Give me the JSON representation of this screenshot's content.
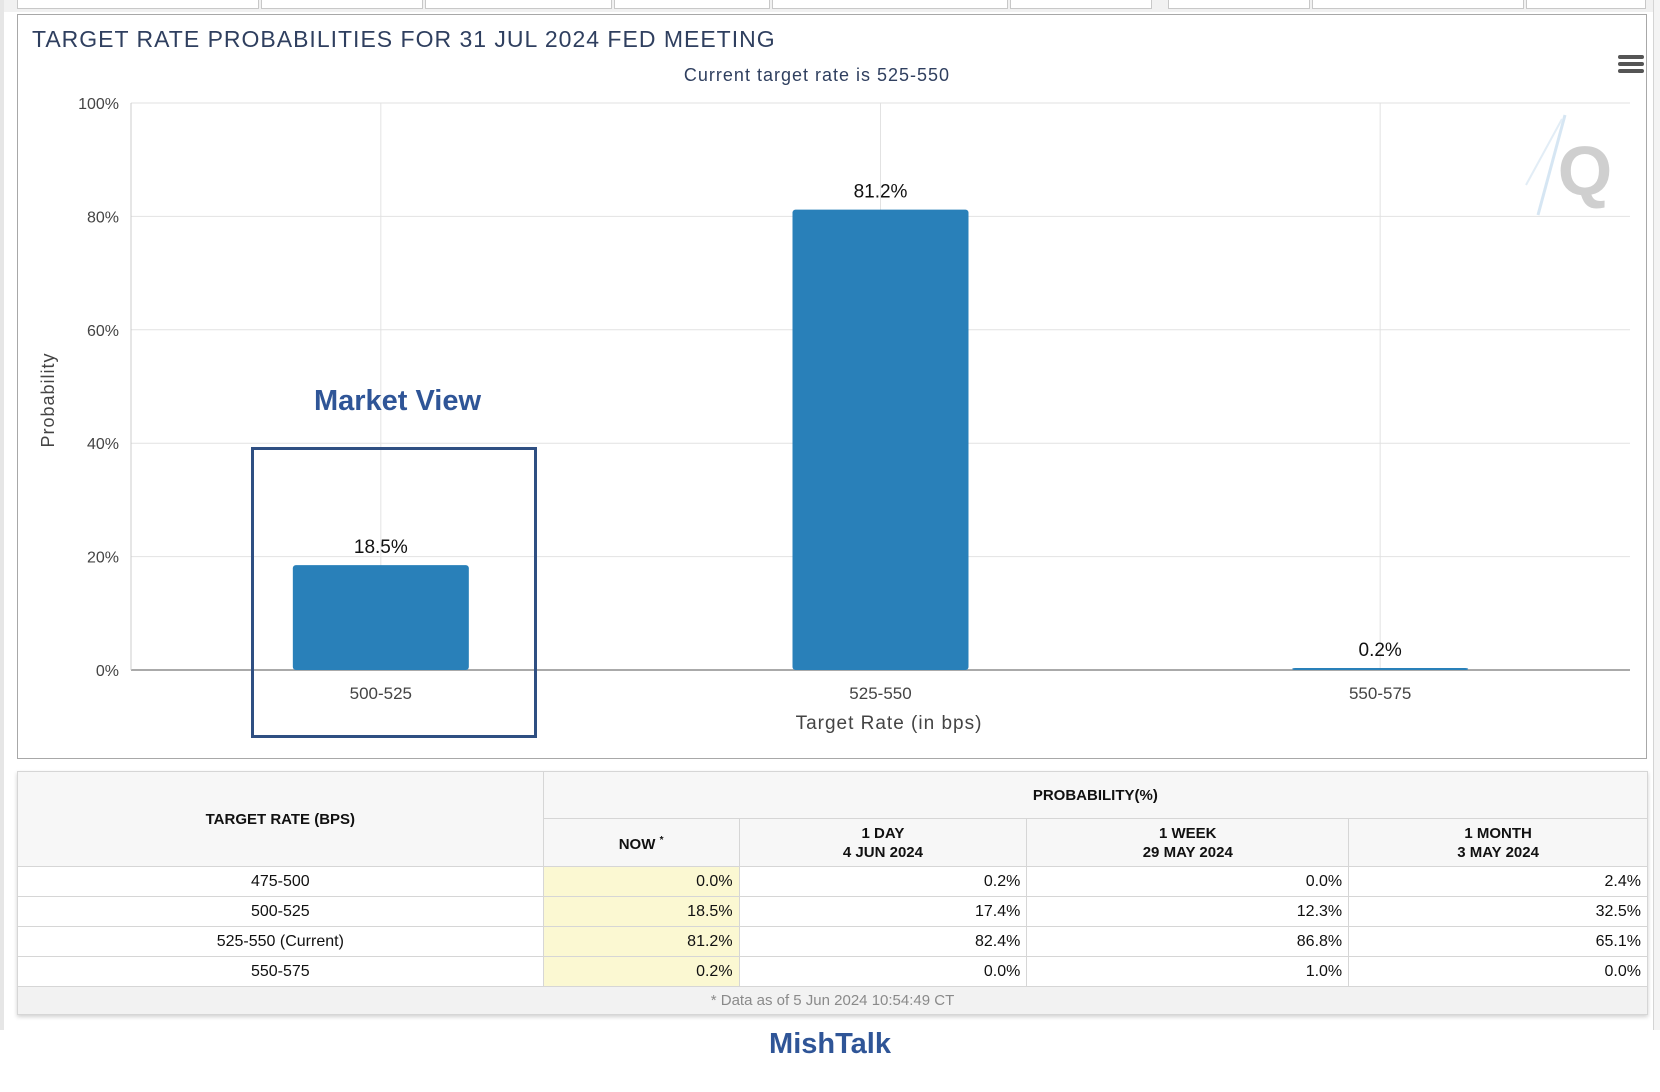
{
  "chart_data": {
    "type": "bar",
    "title": "TARGET RATE PROBABILITIES FOR 31 JUL 2024 FED MEETING",
    "subtitle": "Current target rate is 525-550",
    "categories": [
      "500-525",
      "525-550",
      "550-575"
    ],
    "values": [
      18.5,
      81.2,
      0.2
    ],
    "data_labels": [
      "18.5%",
      "81.2%",
      "0.2%"
    ],
    "xlabel": "Target Rate (in bps)",
    "ylabel": "Probability",
    "ylim": [
      0,
      100
    ],
    "y_ticks": [
      "0%",
      "20%",
      "40%",
      "60%",
      "80%",
      "100%"
    ],
    "grid": true,
    "bar_color": "#2980b9",
    "annotation": "Market View"
  },
  "watermark": "Q",
  "table": {
    "target_rate_header": "TARGET RATE (BPS)",
    "probability_header": "PROBABILITY(%)",
    "columns": [
      {
        "line1": "NOW",
        "line2": "",
        "marker": "*"
      },
      {
        "line1": "1 DAY",
        "line2": "4 JUN 2024",
        "marker": ""
      },
      {
        "line1": "1 WEEK",
        "line2": "29 MAY 2024",
        "marker": ""
      },
      {
        "line1": "1 MONTH",
        "line2": "3 MAY 2024",
        "marker": ""
      }
    ],
    "rows": [
      {
        "rate": "475-500",
        "values": [
          "0.0%",
          "0.2%",
          "0.0%",
          "2.4%"
        ]
      },
      {
        "rate": "500-525",
        "values": [
          "18.5%",
          "17.4%",
          "12.3%",
          "32.5%"
        ]
      },
      {
        "rate": "525-550 (Current)",
        "values": [
          "81.2%",
          "82.4%",
          "86.8%",
          "65.1%"
        ]
      },
      {
        "rate": "550-575",
        "values": [
          "0.2%",
          "0.0%",
          "1.0%",
          "0.0%"
        ]
      }
    ],
    "note": "* Data as of 5 Jun 2024 10:54:49 CT"
  },
  "brand": "MishTalk",
  "colors": {
    "title": "#2f3f5f",
    "annotation": "#2f5597",
    "now_column_bg": "#fbf8d2"
  }
}
